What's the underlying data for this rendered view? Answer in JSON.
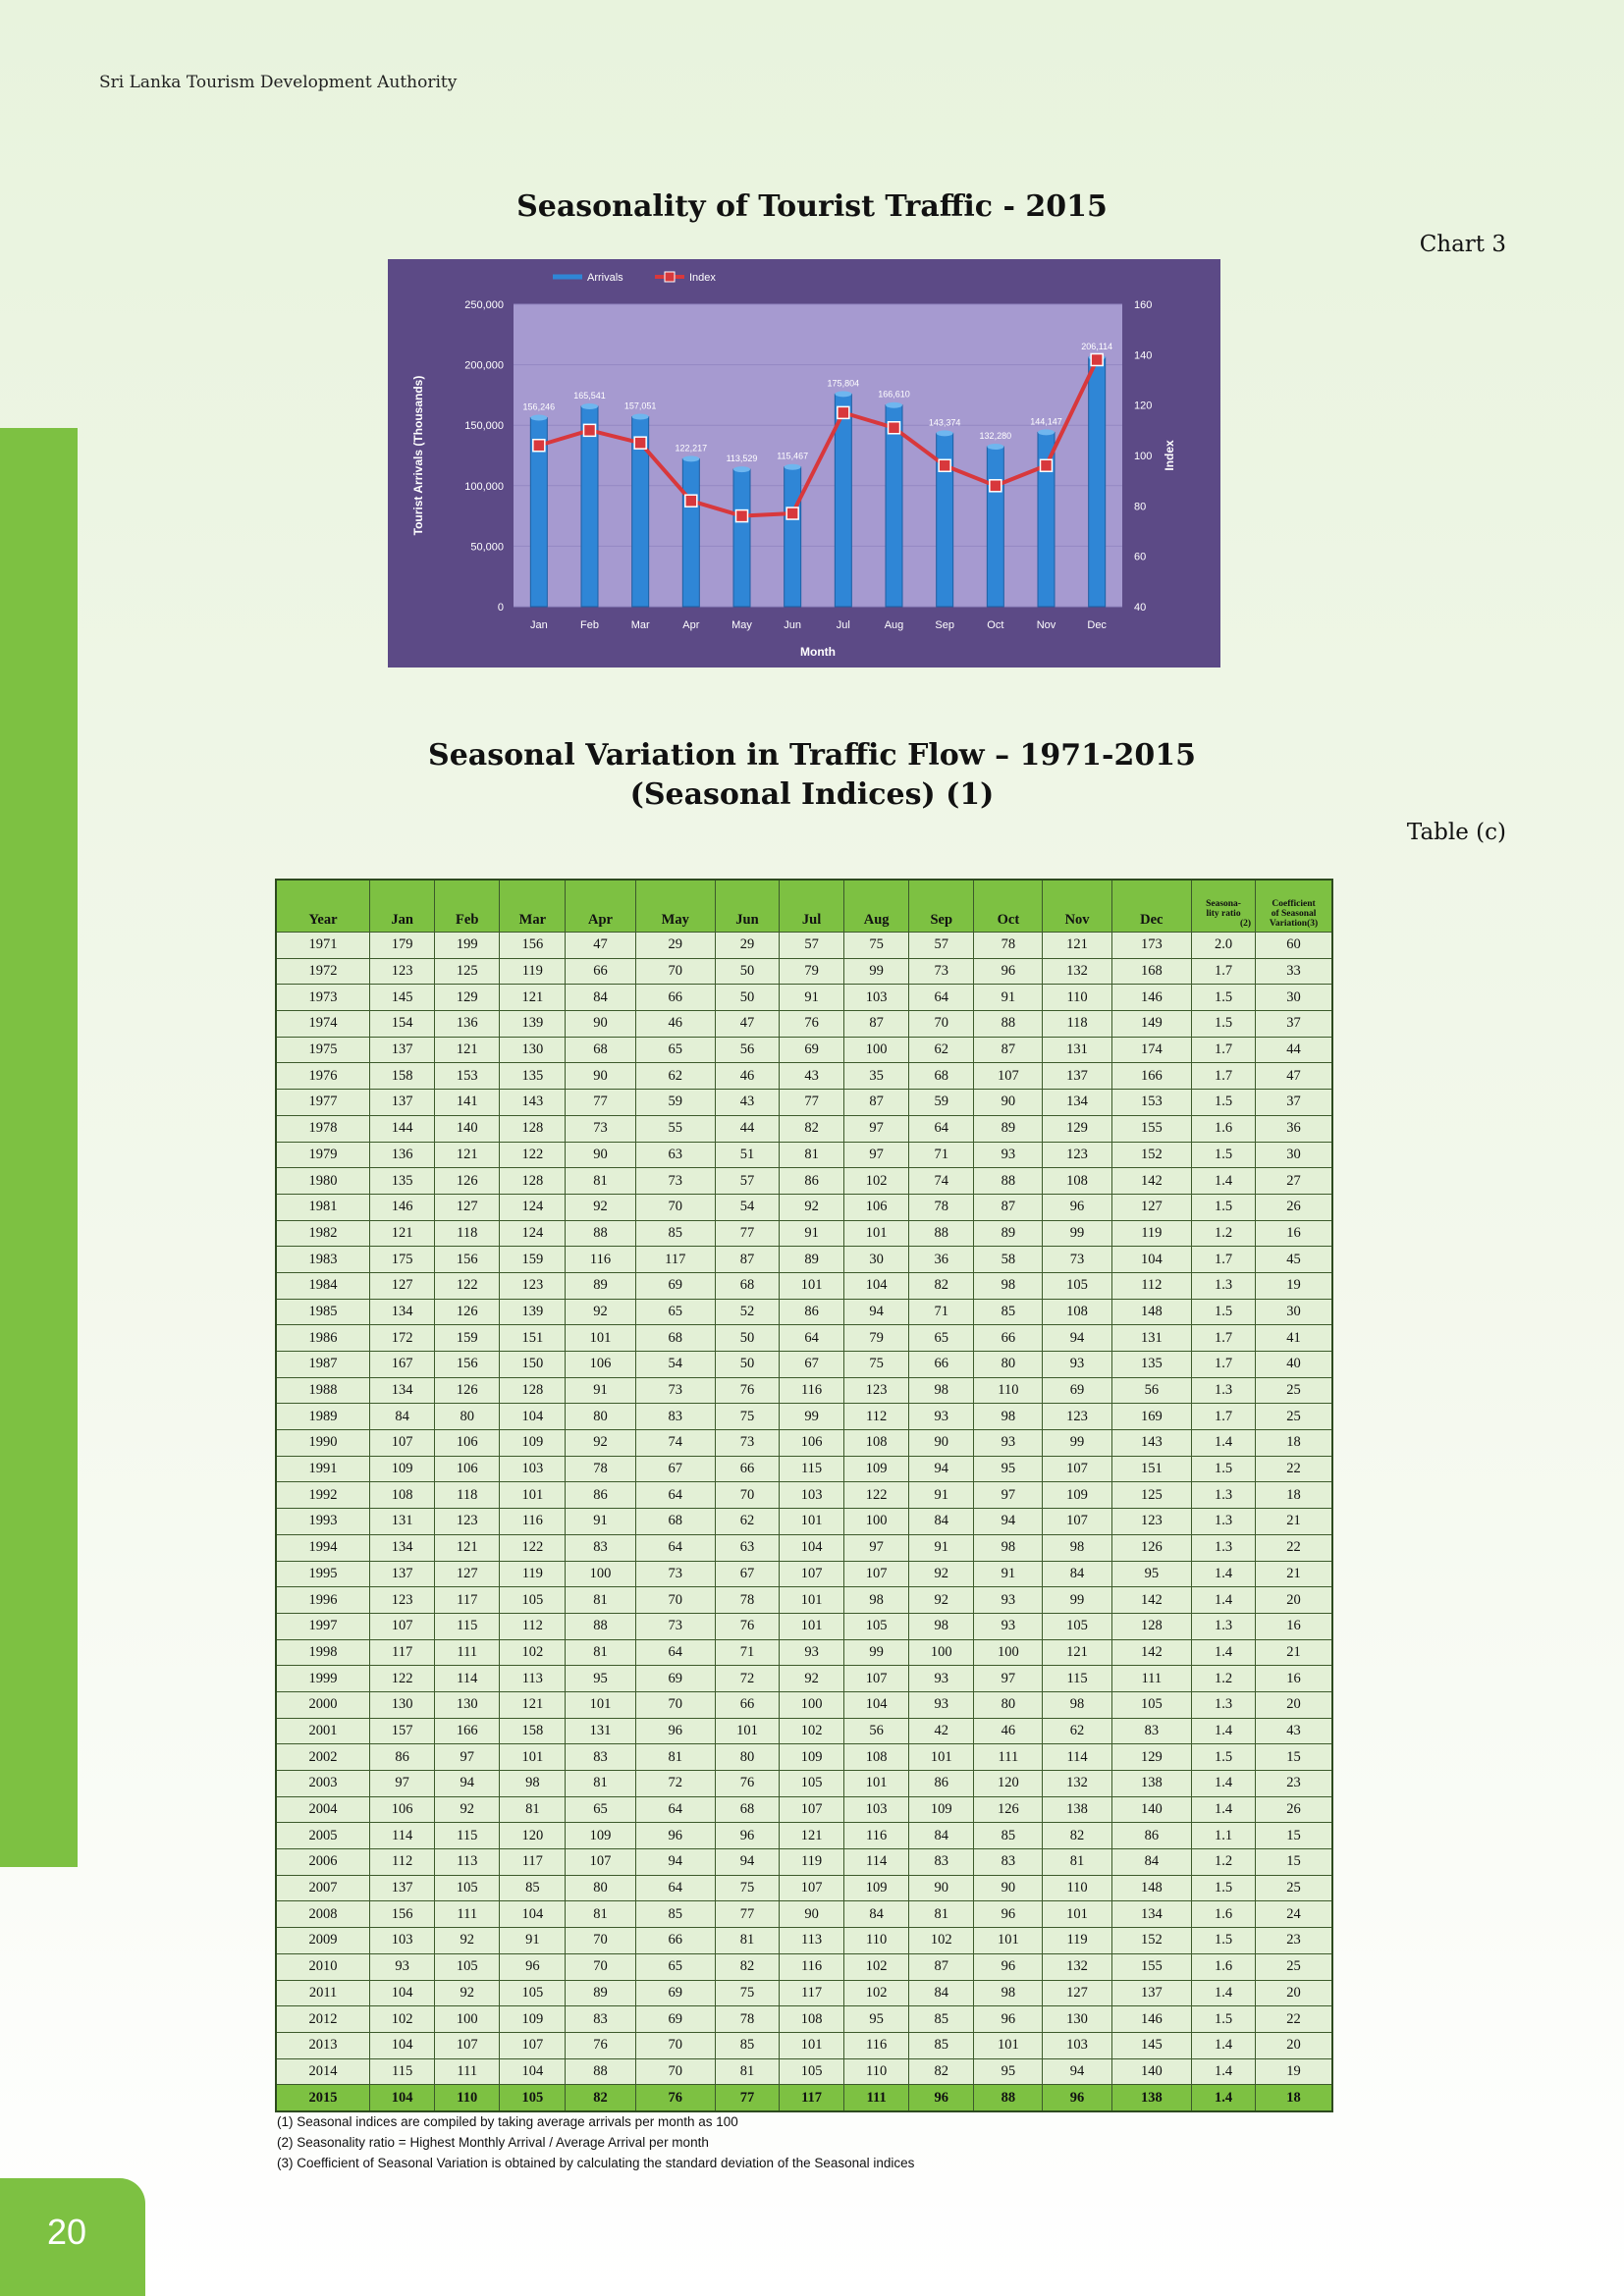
{
  "header": {
    "org": "Sri Lanka Tourism Development Authority"
  },
  "page": {
    "number": "20"
  },
  "chart": {
    "title": "Seasonality of Tourist Traffic - 2015",
    "ref": "Chart 3"
  },
  "chart_data": {
    "type": "bar",
    "categories": [
      "Jan",
      "Feb",
      "Mar",
      "Apr",
      "May",
      "Jun",
      "Jul",
      "Aug",
      "Sep",
      "Oct",
      "Nov",
      "Dec"
    ],
    "series": [
      {
        "name": "Arrivals",
        "type": "bar",
        "axis": "left",
        "values": [
          156246,
          165541,
          157051,
          122217,
          113529,
          115467,
          175804,
          166610,
          143374,
          132280,
          144147,
          206114
        ],
        "labels": [
          "156,246",
          "165,541",
          "157,051",
          "122,217",
          "113,529",
          "115,467",
          "175,804",
          "166,610",
          "143,374",
          "132,280",
          "144,147",
          "206,114"
        ]
      },
      {
        "name": "Index",
        "type": "line",
        "axis": "right",
        "values": [
          104,
          110,
          105,
          82,
          76,
          77,
          117,
          111,
          96,
          88,
          96,
          138
        ]
      }
    ],
    "xlabel": "Month",
    "ylabel": "Tourist Arrivals (Thousands)",
    "y2label": "Index",
    "ylim": [
      0,
      250000
    ],
    "y2lim": [
      40,
      160
    ],
    "yticks": [
      "0",
      "50,000",
      "100,000",
      "150,000",
      "200,000",
      "250,000"
    ],
    "y2ticks": [
      "40",
      "60",
      "80",
      "100",
      "120",
      "140",
      "160"
    ],
    "legend": "top",
    "colors": {
      "background": "#5c4a86",
      "plot": "#a69ad0",
      "bar": "#2f86d6",
      "line": "#d8383c"
    }
  },
  "table": {
    "title_line1": "Seasonal Variation in Traffic Flow – 1971-2015",
    "title_line2": "(Seasonal Indices) (1)",
    "ref": "Table (c)",
    "headers": {
      "year": "Year",
      "jan": "Jan",
      "feb": "Feb",
      "mar": "Mar",
      "apr": "Apr",
      "may": "May",
      "jun": "Jun",
      "jul": "Jul",
      "aug": "Aug",
      "sep": "Sep",
      "oct": "Oct",
      "nov": "Nov",
      "dec": "Dec",
      "ratio_1": "Seasona-",
      "ratio_2": "lity ratio",
      "ratio_3": "(2)",
      "coef_1": "Coefficient",
      "coef_2": "of Seasonal",
      "coef_3": "Variation(3)"
    },
    "rows": [
      [
        "1971",
        "179",
        "199",
        "156",
        "47",
        "29",
        "29",
        "57",
        "75",
        "57",
        "78",
        "121",
        "173",
        "2.0",
        "60"
      ],
      [
        "1972",
        "123",
        "125",
        "119",
        "66",
        "70",
        "50",
        "79",
        "99",
        "73",
        "96",
        "132",
        "168",
        "1.7",
        "33"
      ],
      [
        "1973",
        "145",
        "129",
        "121",
        "84",
        "66",
        "50",
        "91",
        "103",
        "64",
        "91",
        "110",
        "146",
        "1.5",
        "30"
      ],
      [
        "1974",
        "154",
        "136",
        "139",
        "90",
        "46",
        "47",
        "76",
        "87",
        "70",
        "88",
        "118",
        "149",
        "1.5",
        "37"
      ],
      [
        "1975",
        "137",
        "121",
        "130",
        "68",
        "65",
        "56",
        "69",
        "100",
        "62",
        "87",
        "131",
        "174",
        "1.7",
        "44"
      ],
      [
        "1976",
        "158",
        "153",
        "135",
        "90",
        "62",
        "46",
        "43",
        "35",
        "68",
        "107",
        "137",
        "166",
        "1.7",
        "47"
      ],
      [
        "1977",
        "137",
        "141",
        "143",
        "77",
        "59",
        "43",
        "77",
        "87",
        "59",
        "90",
        "134",
        "153",
        "1.5",
        "37"
      ],
      [
        "1978",
        "144",
        "140",
        "128",
        "73",
        "55",
        "44",
        "82",
        "97",
        "64",
        "89",
        "129",
        "155",
        "1.6",
        "36"
      ],
      [
        "1979",
        "136",
        "121",
        "122",
        "90",
        "63",
        "51",
        "81",
        "97",
        "71",
        "93",
        "123",
        "152",
        "1.5",
        "30"
      ],
      [
        "1980",
        "135",
        "126",
        "128",
        "81",
        "73",
        "57",
        "86",
        "102",
        "74",
        "88",
        "108",
        "142",
        "1.4",
        "27"
      ],
      [
        "1981",
        "146",
        "127",
        "124",
        "92",
        "70",
        "54",
        "92",
        "106",
        "78",
        "87",
        "96",
        "127",
        "1.5",
        "26"
      ],
      [
        "1982",
        "121",
        "118",
        "124",
        "88",
        "85",
        "77",
        "91",
        "101",
        "88",
        "89",
        "99",
        "119",
        "1.2",
        "16"
      ],
      [
        "1983",
        "175",
        "156",
        "159",
        "116",
        "117",
        "87",
        "89",
        "30",
        "36",
        "58",
        "73",
        "104",
        "1.7",
        "45"
      ],
      [
        "1984",
        "127",
        "122",
        "123",
        "89",
        "69",
        "68",
        "101",
        "104",
        "82",
        "98",
        "105",
        "112",
        "1.3",
        "19"
      ],
      [
        "1985",
        "134",
        "126",
        "139",
        "92",
        "65",
        "52",
        "86",
        "94",
        "71",
        "85",
        "108",
        "148",
        "1.5",
        "30"
      ],
      [
        "1986",
        "172",
        "159",
        "151",
        "101",
        "68",
        "50",
        "64",
        "79",
        "65",
        "66",
        "94",
        "131",
        "1.7",
        "41"
      ],
      [
        "1987",
        "167",
        "156",
        "150",
        "106",
        "54",
        "50",
        "67",
        "75",
        "66",
        "80",
        "93",
        "135",
        "1.7",
        "40"
      ],
      [
        "1988",
        "134",
        "126",
        "128",
        "91",
        "73",
        "76",
        "116",
        "123",
        "98",
        "110",
        "69",
        "56",
        "1.3",
        "25"
      ],
      [
        "1989",
        "84",
        "80",
        "104",
        "80",
        "83",
        "75",
        "99",
        "112",
        "93",
        "98",
        "123",
        "169",
        "1.7",
        "25"
      ],
      [
        "1990",
        "107",
        "106",
        "109",
        "92",
        "74",
        "73",
        "106",
        "108",
        "90",
        "93",
        "99",
        "143",
        "1.4",
        "18"
      ],
      [
        "1991",
        "109",
        "106",
        "103",
        "78",
        "67",
        "66",
        "115",
        "109",
        "94",
        "95",
        "107",
        "151",
        "1.5",
        "22"
      ],
      [
        "1992",
        "108",
        "118",
        "101",
        "86",
        "64",
        "70",
        "103",
        "122",
        "91",
        "97",
        "109",
        "125",
        "1.3",
        "18"
      ],
      [
        "1993",
        "131",
        "123",
        "116",
        "91",
        "68",
        "62",
        "101",
        "100",
        "84",
        "94",
        "107",
        "123",
        "1.3",
        "21"
      ],
      [
        "1994",
        "134",
        "121",
        "122",
        "83",
        "64",
        "63",
        "104",
        "97",
        "91",
        "98",
        "98",
        "126",
        "1.3",
        "22"
      ],
      [
        "1995",
        "137",
        "127",
        "119",
        "100",
        "73",
        "67",
        "107",
        "107",
        "92",
        "91",
        "84",
        "95",
        "1.4",
        "21"
      ],
      [
        "1996",
        "123",
        "117",
        "105",
        "81",
        "70",
        "78",
        "101",
        "98",
        "92",
        "93",
        "99",
        "142",
        "1.4",
        "20"
      ],
      [
        "1997",
        "107",
        "115",
        "112",
        "88",
        "73",
        "76",
        "101",
        "105",
        "98",
        "93",
        "105",
        "128",
        "1.3",
        "16"
      ],
      [
        "1998",
        "117",
        "111",
        "102",
        "81",
        "64",
        "71",
        "93",
        "99",
        "100",
        "100",
        "121",
        "142",
        "1.4",
        "21"
      ],
      [
        "1999",
        "122",
        "114",
        "113",
        "95",
        "69",
        "72",
        "92",
        "107",
        "93",
        "97",
        "115",
        "111",
        "1.2",
        "16"
      ],
      [
        "2000",
        "130",
        "130",
        "121",
        "101",
        "70",
        "66",
        "100",
        "104",
        "93",
        "80",
        "98",
        "105",
        "1.3",
        "20"
      ],
      [
        "2001",
        "157",
        "166",
        "158",
        "131",
        "96",
        "101",
        "102",
        "56",
        "42",
        "46",
        "62",
        "83",
        "1.4",
        "43"
      ],
      [
        "2002",
        "86",
        "97",
        "101",
        "83",
        "81",
        "80",
        "109",
        "108",
        "101",
        "111",
        "114",
        "129",
        "1.5",
        "15"
      ],
      [
        "2003",
        "97",
        "94",
        "98",
        "81",
        "72",
        "76",
        "105",
        "101",
        "86",
        "120",
        "132",
        "138",
        "1.4",
        "23"
      ],
      [
        "2004",
        "106",
        "92",
        "81",
        "65",
        "64",
        "68",
        "107",
        "103",
        "109",
        "126",
        "138",
        "140",
        "1.4",
        "26"
      ],
      [
        "2005",
        "114",
        "115",
        "120",
        "109",
        "96",
        "96",
        "121",
        "116",
        "84",
        "85",
        "82",
        "86",
        "1.1",
        "15"
      ],
      [
        "2006",
        "112",
        "113",
        "117",
        "107",
        "94",
        "94",
        "119",
        "114",
        "83",
        "83",
        "81",
        "84",
        "1.2",
        "15"
      ],
      [
        "2007",
        "137",
        "105",
        "85",
        "80",
        "64",
        "75",
        "107",
        "109",
        "90",
        "90",
        "110",
        "148",
        "1.5",
        "25"
      ],
      [
        "2008",
        "156",
        "111",
        "104",
        "81",
        "85",
        "77",
        "90",
        "84",
        "81",
        "96",
        "101",
        "134",
        "1.6",
        "24"
      ],
      [
        "2009",
        "103",
        "92",
        "91",
        "70",
        "66",
        "81",
        "113",
        "110",
        "102",
        "101",
        "119",
        "152",
        "1.5",
        "23"
      ],
      [
        "2010",
        "93",
        "105",
        "96",
        "70",
        "65",
        "82",
        "116",
        "102",
        "87",
        "96",
        "132",
        "155",
        "1.6",
        "25"
      ],
      [
        "2011",
        "104",
        "92",
        "105",
        "89",
        "69",
        "75",
        "117",
        "102",
        "84",
        "98",
        "127",
        "137",
        "1.4",
        "20"
      ],
      [
        "2012",
        "102",
        "100",
        "109",
        "83",
        "69",
        "78",
        "108",
        "95",
        "85",
        "96",
        "130",
        "146",
        "1.5",
        "22"
      ],
      [
        "2013",
        "104",
        "107",
        "107",
        "76",
        "70",
        "85",
        "101",
        "116",
        "85",
        "101",
        "103",
        "145",
        "1.4",
        "20"
      ],
      [
        "2014",
        "115",
        "111",
        "104",
        "88",
        "70",
        "81",
        "105",
        "110",
        "82",
        "95",
        "94",
        "140",
        "1.4",
        "19"
      ],
      [
        "2015",
        "104",
        "110",
        "105",
        "82",
        "76",
        "77",
        "117",
        "111",
        "96",
        "88",
        "96",
        "138",
        "1.4",
        "18"
      ]
    ],
    "notes": [
      "(1) Seasonal indices are compiled by taking average arrivals per month as 100",
      "(2) Seasonality ratio = Highest Monthly Arrival / Average Arrival per month",
      "(3) Coefficient of Seasonal Variation is obtained by calculating the standard deviation of the Seasonal indices"
    ]
  }
}
